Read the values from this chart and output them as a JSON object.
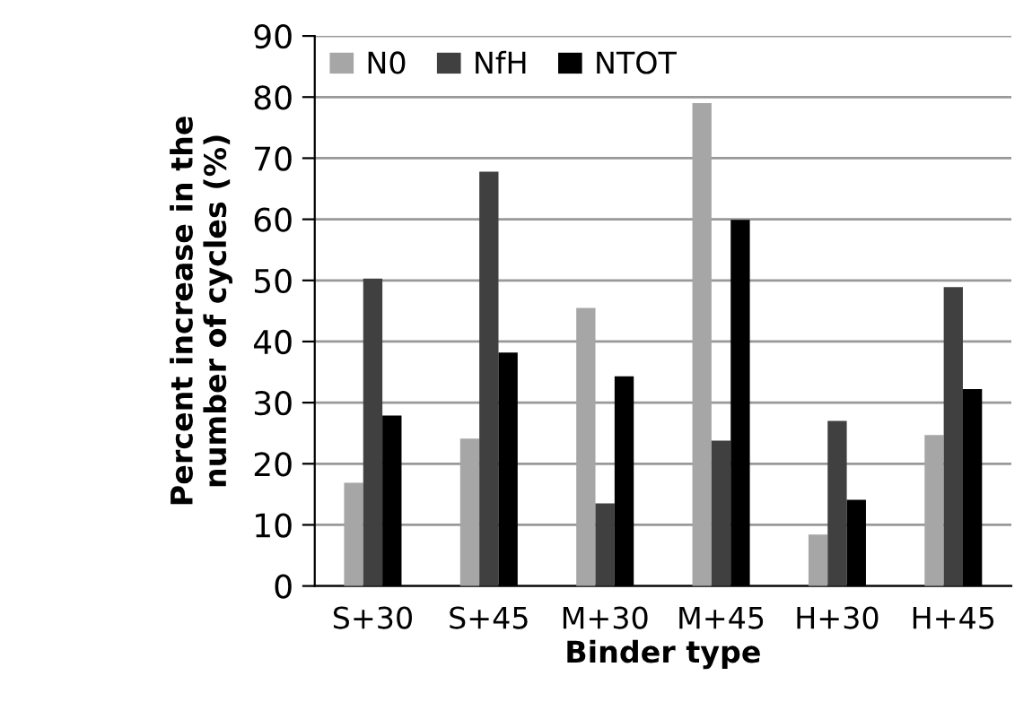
{
  "chart_data": {
    "type": "bar",
    "xlabel": "Binder type",
    "ylabel": "Percent increase in the\nnumber of cycles (%)",
    "categories": [
      "S+30",
      "S+45",
      "M+30",
      "M+45",
      "H+30",
      "H+45"
    ],
    "series": [
      {
        "name": "N0",
        "color": "#a6a6a6",
        "values": [
          16.9,
          24.1,
          45.5,
          79.0,
          8.4,
          24.7
        ]
      },
      {
        "name": "NfH",
        "color": "#404040",
        "values": [
          50.3,
          67.8,
          13.5,
          23.8,
          27.0,
          48.9
        ]
      },
      {
        "name": "NTOT",
        "color": "#000000",
        "values": [
          27.9,
          38.2,
          34.3,
          59.9,
          14.1,
          32.2
        ]
      }
    ],
    "ylim": [
      0,
      90
    ],
    "yticks": [
      0,
      10,
      20,
      30,
      40,
      50,
      60,
      70,
      80,
      90
    ],
    "grid": "y",
    "legend": "top left"
  }
}
